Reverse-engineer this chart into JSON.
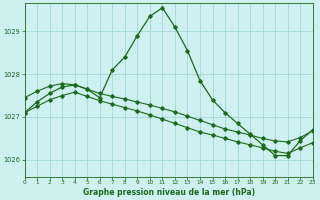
{
  "title": "Graphe pression niveau de la mer (hPa)",
  "bg_color": "#cef0f0",
  "grid_color": "#a0d8d8",
  "line_color": "#1a6b1a",
  "x_min": 0,
  "x_max": 23,
  "y_min": 1025.6,
  "y_max": 1029.65,
  "yticks": [
    1026,
    1027,
    1028,
    1029
  ],
  "xticks": [
    0,
    1,
    2,
    3,
    4,
    5,
    6,
    7,
    8,
    9,
    10,
    11,
    12,
    13,
    14,
    15,
    16,
    17,
    18,
    19,
    20,
    21,
    22,
    23
  ],
  "series1_x": [
    0,
    1,
    2,
    3,
    4,
    5,
    6,
    7,
    8,
    9,
    10,
    11,
    12,
    13,
    14,
    15,
    16,
    17,
    18,
    19,
    20,
    21,
    22,
    23
  ],
  "series1_y": [
    1027.1,
    1027.35,
    1027.55,
    1027.7,
    1027.75,
    1027.65,
    1027.45,
    1028.1,
    1028.4,
    1028.9,
    1029.35,
    1029.55,
    1029.1,
    1028.55,
    1027.85,
    1027.4,
    1027.1,
    1026.85,
    1026.6,
    1026.35,
    1026.1,
    1026.1,
    1026.45,
    1026.7
  ],
  "series2_x": [
    0,
    1,
    2,
    3,
    4,
    5,
    6,
    7,
    8,
    9,
    10,
    11,
    12,
    13,
    14,
    15,
    16,
    17,
    18,
    19,
    20,
    21,
    22,
    23
  ],
  "series2_y": [
    1027.45,
    1027.6,
    1027.72,
    1027.78,
    1027.75,
    1027.65,
    1027.55,
    1027.48,
    1027.42,
    1027.35,
    1027.28,
    1027.2,
    1027.12,
    1027.02,
    1026.92,
    1026.82,
    1026.72,
    1026.65,
    1026.58,
    1026.5,
    1026.44,
    1026.42,
    1026.52,
    1026.68
  ],
  "series3_x": [
    0,
    1,
    2,
    3,
    4,
    5,
    6,
    7,
    8,
    9,
    10,
    11,
    12,
    13,
    14,
    15,
    16,
    17,
    18,
    19,
    20,
    21,
    22,
    23
  ],
  "series3_y": [
    1027.1,
    1027.25,
    1027.4,
    1027.5,
    1027.58,
    1027.48,
    1027.38,
    1027.3,
    1027.22,
    1027.14,
    1027.05,
    1026.95,
    1026.85,
    1026.75,
    1026.65,
    1026.58,
    1026.5,
    1026.42,
    1026.35,
    1026.28,
    1026.2,
    1026.15,
    1026.28,
    1026.4
  ]
}
